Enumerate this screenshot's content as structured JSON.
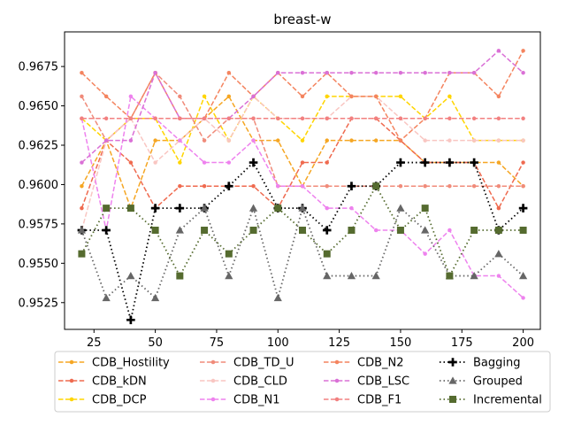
{
  "chart_data": {
    "type": "line",
    "title": "breast-w",
    "xlabel": "",
    "ylabel": "",
    "x": [
      20,
      30,
      40,
      50,
      60,
      70,
      80,
      90,
      100,
      110,
      120,
      130,
      140,
      150,
      160,
      170,
      180,
      190,
      200
    ],
    "xlim": [
      13,
      207
    ],
    "ylim": [
      0.9508,
      0.9697
    ],
    "xticks": [
      "25",
      "50",
      "75",
      "100",
      "125",
      "150",
      "175",
      "200"
    ],
    "yticks": [
      "0.9525",
      "0.9550",
      "0.9575",
      "0.9600",
      "0.9625",
      "0.9650",
      "0.9675"
    ],
    "grid": false,
    "legend_position": "below",
    "series": [
      {
        "name": "CDB_Hostility",
        "color": "#f5a623",
        "marker": "circle",
        "linestyle": "dashed",
        "values": [
          0.9599,
          0.9628,
          0.9585,
          0.9628,
          0.9628,
          0.9642,
          0.9656,
          0.9628,
          0.9628,
          0.9599,
          0.9628,
          0.9628,
          0.9628,
          0.9628,
          0.9614,
          0.9614,
          0.9614,
          0.9614,
          0.9599
        ]
      },
      {
        "name": "CDB_kDN",
        "color": "#ef6a4f",
        "marker": "circle",
        "linestyle": "dashed",
        "values": [
          0.9585,
          0.9628,
          0.9614,
          0.9585,
          0.9599,
          0.9599,
          0.9599,
          0.9599,
          0.9585,
          0.9614,
          0.9614,
          0.9642,
          0.9642,
          0.9628,
          0.9614,
          0.9614,
          0.9614,
          0.9585,
          0.9614
        ]
      },
      {
        "name": "CDB_DCP",
        "color": "#ffd500",
        "marker": "circle",
        "linestyle": "dashed",
        "values": [
          0.9642,
          0.9628,
          0.9642,
          0.9642,
          0.9614,
          0.9656,
          0.9628,
          0.9656,
          0.9642,
          0.9628,
          0.9656,
          0.9656,
          0.9656,
          0.9656,
          0.9642,
          0.9656,
          0.9628,
          0.9628,
          0.9628
        ]
      },
      {
        "name": "CDB_TD_U",
        "color": "#f08b7a",
        "marker": "circle",
        "linestyle": "dashed",
        "values": [
          0.9656,
          0.9628,
          0.9642,
          0.9671,
          0.9656,
          0.9628,
          0.9642,
          0.9642,
          0.9599,
          0.9599,
          0.9599,
          0.9599,
          0.9599,
          0.9599,
          0.9599,
          0.9599,
          0.9599,
          0.9599,
          0.9599
        ]
      },
      {
        "name": "CDB_CLD",
        "color": "#f9c6c2",
        "marker": "circle",
        "linestyle": "dashed",
        "values": [
          0.9571,
          0.9628,
          0.9642,
          0.9614,
          0.9628,
          0.9642,
          0.9628,
          0.9656,
          0.9642,
          0.9642,
          0.9642,
          0.9656,
          0.9656,
          0.9642,
          0.9628,
          0.9628,
          0.9628,
          0.9628,
          0.9628
        ]
      },
      {
        "name": "CDB_N1",
        "color": "#ee82ee",
        "marker": "circle",
        "linestyle": "dashed",
        "values": [
          0.9642,
          0.9571,
          0.9656,
          0.9642,
          0.9628,
          0.9614,
          0.9614,
          0.9628,
          0.9599,
          0.9599,
          0.9585,
          0.9585,
          0.9571,
          0.9571,
          0.9556,
          0.9571,
          0.9542,
          0.9542,
          0.9528
        ]
      },
      {
        "name": "CDB_N2",
        "color": "#f4845f",
        "marker": "circle",
        "linestyle": "dashed",
        "values": [
          0.9671,
          0.9656,
          0.9642,
          0.9671,
          0.9642,
          0.9642,
          0.9671,
          0.9656,
          0.9671,
          0.9656,
          0.9671,
          0.9656,
          0.9656,
          0.9628,
          0.9642,
          0.9671,
          0.9671,
          0.9656,
          0.9685
        ]
      },
      {
        "name": "CDB_LSC",
        "color": "#da70d6",
        "marker": "circle",
        "linestyle": "dashed",
        "values": [
          0.9614,
          0.9628,
          0.9628,
          0.9671,
          0.9642,
          0.9642,
          0.9642,
          0.9656,
          0.9671,
          0.9671,
          0.9671,
          0.9671,
          0.9671,
          0.9671,
          0.9671,
          0.9671,
          0.9671,
          0.9685,
          0.9671
        ]
      },
      {
        "name": "CDB_F1",
        "color": "#f28080",
        "marker": "circle",
        "linestyle": "dashed",
        "values": [
          0.9642,
          0.9642,
          0.9642,
          0.9642,
          0.9642,
          0.9642,
          0.9642,
          0.9642,
          0.9642,
          0.9642,
          0.9642,
          0.9642,
          0.9642,
          0.9642,
          0.9642,
          0.9642,
          0.9642,
          0.9642,
          0.9642
        ]
      },
      {
        "name": "Bagging",
        "color": "#000000",
        "marker": "plus",
        "linestyle": "dotted",
        "values": [
          0.9571,
          0.9571,
          0.9514,
          0.9585,
          0.9585,
          0.9585,
          0.9599,
          0.9614,
          0.9585,
          0.9585,
          0.9571,
          0.9599,
          0.9599,
          0.9614,
          0.9614,
          0.9614,
          0.9614,
          0.9571,
          0.9585
        ]
      },
      {
        "name": "Grouped",
        "color": "#666666",
        "marker": "triangle",
        "linestyle": "dotted",
        "values": [
          0.9571,
          0.9528,
          0.9542,
          0.9528,
          0.9571,
          0.9585,
          0.9542,
          0.9585,
          0.9528,
          0.9585,
          0.9542,
          0.9542,
          0.9542,
          0.9585,
          0.9571,
          0.9542,
          0.9542,
          0.9556,
          0.9542
        ]
      },
      {
        "name": "Incremental",
        "color": "#556b2f",
        "marker": "square",
        "linestyle": "dotted",
        "values": [
          0.9556,
          0.9585,
          0.9585,
          0.9571,
          0.9542,
          0.9571,
          0.9556,
          0.9571,
          0.9585,
          0.9571,
          0.9556,
          0.9571,
          0.9599,
          0.9571,
          0.9585,
          0.9542,
          0.9571,
          0.9571,
          0.9571
        ]
      }
    ]
  }
}
